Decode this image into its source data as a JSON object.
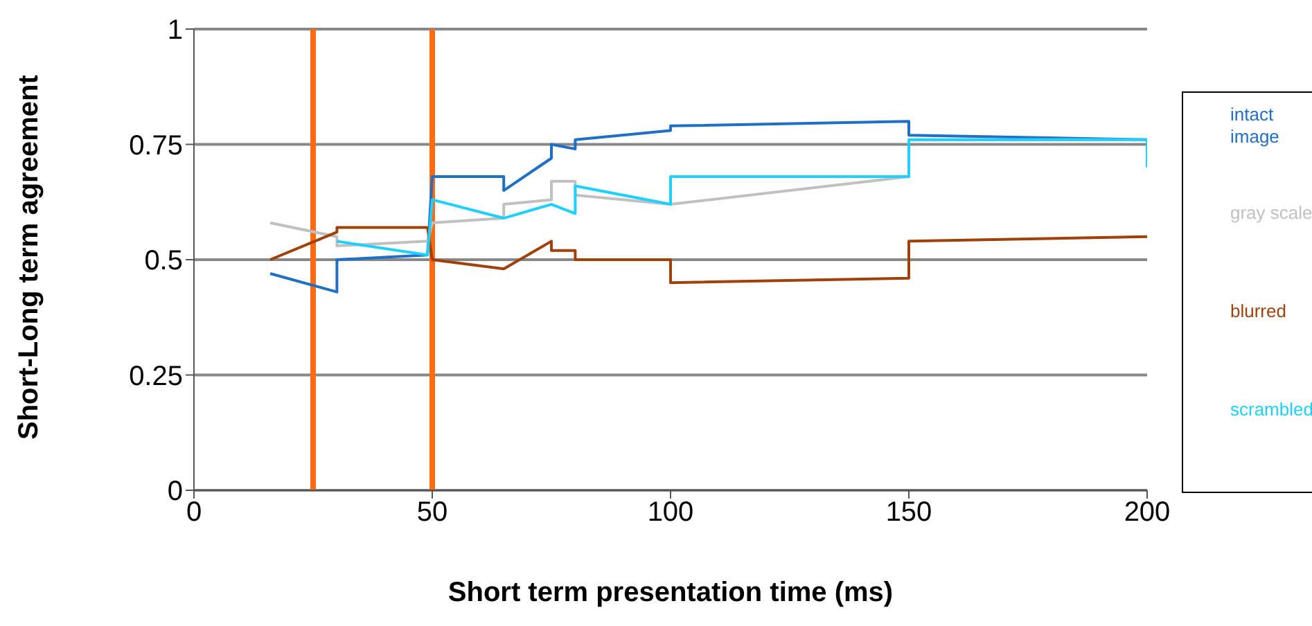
{
  "chart_data": {
    "type": "line",
    "xlabel": "Short term presentation time (ms)",
    "ylabel": "Short-Long term agreement",
    "xlim": [
      0,
      200
    ],
    "xticks": [
      0,
      50,
      100,
      150,
      200
    ],
    "ylim": [
      0,
      1
    ],
    "yticks": [
      0,
      0.25,
      0.5,
      0.75,
      1
    ],
    "grid": "y",
    "legend": "right",
    "marker": "none",
    "line_style": "solid",
    "ref_lines": [
      {
        "axis": "x",
        "value": 25,
        "color": "#ff6a13"
      },
      {
        "axis": "x",
        "value": 50,
        "color": "#ff6a13"
      }
    ],
    "series": [
      {
        "name": "intact image",
        "color": "#1f6fc6",
        "x": [
          16,
          30,
          30,
          49,
          50,
          65,
          65,
          75,
          75,
          80,
          80,
          100,
          100,
          150,
          150,
          200
        ],
        "values": [
          0.47,
          0.43,
          0.5,
          0.51,
          0.68,
          0.68,
          0.65,
          0.72,
          0.75,
          0.74,
          0.76,
          0.78,
          0.79,
          0.8,
          0.77,
          0.76
        ]
      },
      {
        "name": "gray scale",
        "color": "#c0c0c0",
        "x": [
          16,
          30,
          30,
          49,
          50,
          65,
          65,
          75,
          75,
          80,
          80,
          100,
          150,
          150,
          200
        ],
        "values": [
          0.58,
          0.55,
          0.53,
          0.54,
          0.58,
          0.59,
          0.62,
          0.63,
          0.67,
          0.67,
          0.64,
          0.62,
          0.68,
          0.76,
          0.76
        ]
      },
      {
        "name": "blurred",
        "color": "#a0400a",
        "x": [
          16,
          30,
          30,
          49,
          50,
          65,
          75,
          75,
          80,
          80,
          100,
          100,
          150,
          150,
          200
        ],
        "values": [
          0.5,
          0.56,
          0.57,
          0.57,
          0.5,
          0.48,
          0.54,
          0.52,
          0.52,
          0.5,
          0.5,
          0.45,
          0.46,
          0.54,
          0.55
        ]
      },
      {
        "name": "scrambled",
        "color": "#1ecfff",
        "x": [
          30,
          49,
          50,
          65,
          75,
          80,
          80,
          100,
          100,
          150,
          150,
          200,
          200
        ],
        "values": [
          0.54,
          0.51,
          0.63,
          0.59,
          0.62,
          0.6,
          0.66,
          0.62,
          0.68,
          0.68,
          0.76,
          0.76,
          0.7
        ]
      }
    ]
  }
}
